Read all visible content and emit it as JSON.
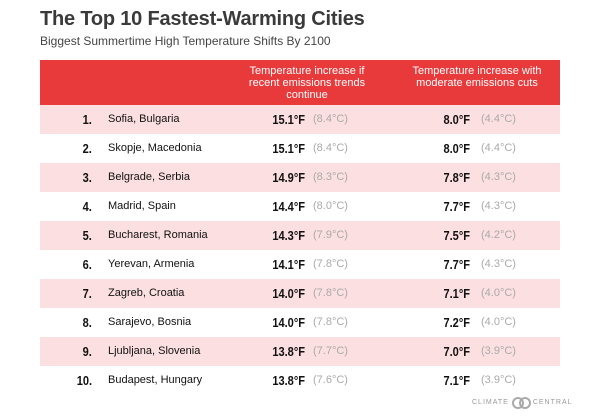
{
  "title": "The Top 10 Fastest-Warming Cities",
  "subtitle": "Biggest Summertime High Temperature Shifts By 2100",
  "columns": [
    "Temperature increase if recent emissions trends continue",
    "Temperature increase with moderate emissions cuts"
  ],
  "rows": [
    {
      "rank": "1.",
      "city": "Sofia, Bulgaria",
      "f1": "15.1°F",
      "c1": "(8.4°C)",
      "f2": "8.0°F",
      "c2": "(4.4°C)"
    },
    {
      "rank": "2.",
      "city": "Skopje, Macedonia",
      "f1": "15.1°F",
      "c1": "(8.4°C)",
      "f2": "8.0°F",
      "c2": "(4.4°C)"
    },
    {
      "rank": "3.",
      "city": "Belgrade, Serbia",
      "f1": "14.9°F",
      "c1": "(8.3°C)",
      "f2": "7.8°F",
      "c2": "(4.3°C)"
    },
    {
      "rank": "4.",
      "city": "Madrid, Spain",
      "f1": "14.4°F",
      "c1": "(8.0°C)",
      "f2": "7.7°F",
      "c2": "(4.3°C)"
    },
    {
      "rank": "5.",
      "city": "Bucharest, Romania",
      "f1": "14.3°F",
      "c1": "(7.9°C)",
      "f2": "7.5°F",
      "c2": "(4.2°C)"
    },
    {
      "rank": "6.",
      "city": "Yerevan, Armenia",
      "f1": "14.1°F",
      "c1": "(7.8°C)",
      "f2": "7.7°F",
      "c2": "(4.3°C)"
    },
    {
      "rank": "7.",
      "city": "Zagreb, Croatia",
      "f1": "14.0°F",
      "c1": "(7.8°C)",
      "f2": "7.1°F",
      "c2": "(4.0°C)"
    },
    {
      "rank": "8.",
      "city": "Sarajevo, Bosnia",
      "f1": "14.0°F",
      "c1": "(7.8°C)",
      "f2": "7.2°F",
      "c2": "(4.0°C)"
    },
    {
      "rank": "9.",
      "city": "Ljubljana, Slovenia",
      "f1": "13.8°F",
      "c1": "(7.7°C)",
      "f2": "7.0°F",
      "c2": "(3.9°C)"
    },
    {
      "rank": "10.",
      "city": "Budapest, Hungary",
      "f1": "13.8°F",
      "c1": "(7.6°C)",
      "f2": "7.1°F",
      "c2": "(3.9°C)"
    }
  ],
  "logo": {
    "left": "CLIMATE",
    "right": "CENTRAL"
  },
  "colors": {
    "header": "#e8393b",
    "stripe": "#fcdfe0"
  }
}
